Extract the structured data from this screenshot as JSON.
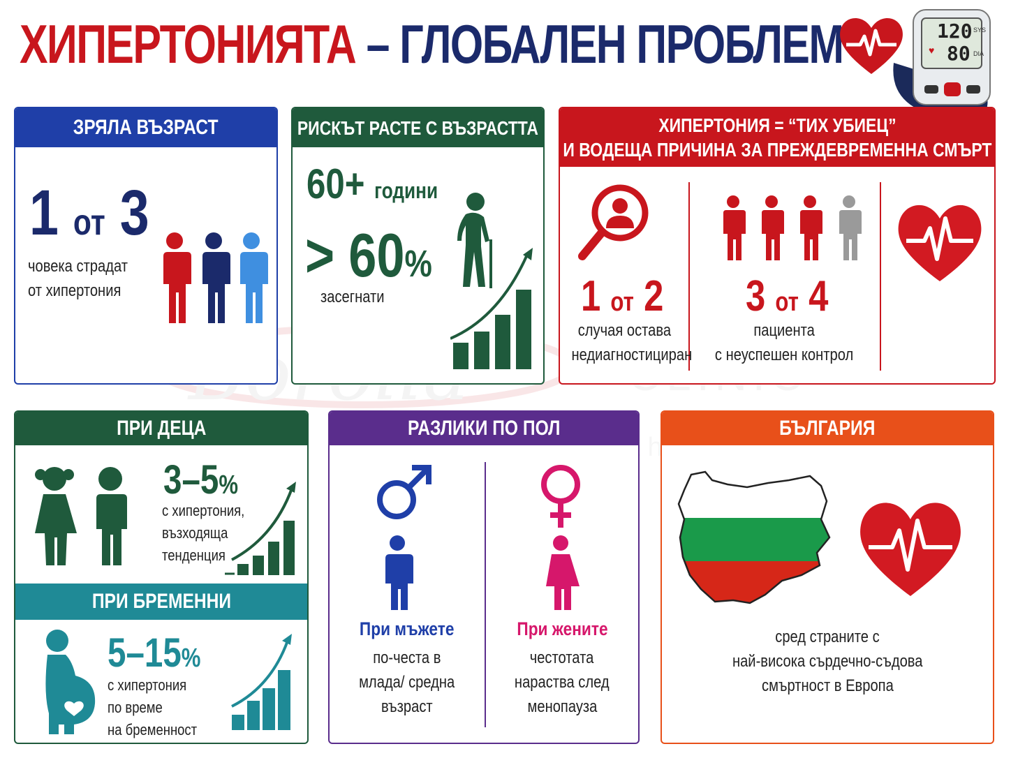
{
  "header": {
    "title_part1": "ХИПЕРТОНИЯТА",
    "title_dash": "–",
    "title_part2": "ГЛОБАЛЕН ПРОБЛЕМ",
    "monitor_sys": "120",
    "monitor_dia": "80",
    "monitor_sys_label": "SYS",
    "monitor_dia_label": "DIA"
  },
  "colors": {
    "red": "#c8161d",
    "navy": "#1b2a6b",
    "blue": "#1f3fa8",
    "green": "#1f5a3c",
    "teal": "#1f8a96",
    "purple": "#5a2d8c",
    "orange": "#e8501a",
    "pink": "#d6176b"
  },
  "adult": {
    "heading": "ЗРЯЛА ВЪЗРАСТ",
    "stat_a": "1",
    "stat_of": "от",
    "stat_b": "3",
    "line1": "човека страдат",
    "line2": "от хипертония"
  },
  "age_risk": {
    "heading": "РИСКЪТ РАСТЕ С ВЪЗРАСТТА",
    "age": "60+",
    "age_unit": "години",
    "percent": "> 60",
    "percent_sign": "%",
    "caption": "засегнати"
  },
  "silent_killer": {
    "heading_line1": "ХИПЕРТОНИЯ = “ТИХ УБИЕЦ”",
    "heading_line2": "И ВОДЕЩА ПРИЧИНА ЗА ПРЕЖДЕВРЕМЕННА СМЪРТ",
    "stat1_a": "1",
    "stat1_of": "от",
    "stat1_b": "2",
    "stat1_line1": "случая остава",
    "stat1_line2": "недиагностициран",
    "stat2_a": "3",
    "stat2_of": "от",
    "stat2_b": "4",
    "stat2_line1": "пациента",
    "stat2_line2": "с неуспешен контрол"
  },
  "children": {
    "heading": "ПРИ ДЕЦА",
    "stat": "3–5",
    "stat_sign": "%",
    "line1": "с хипертония,",
    "line2": "възходяща",
    "line3": "тенденция"
  },
  "pregnant": {
    "heading": "ПРИ БРЕМЕННИ",
    "stat": "5–15",
    "stat_sign": "%",
    "line1": "с хипертония",
    "line2": "по време",
    "line3": "на бременност"
  },
  "gender": {
    "heading": "РАЗЛИКИ ПО ПОЛ",
    "men_title": "При мъжете",
    "men_line1": "по-честа в",
    "men_line2": "млада/ средна",
    "men_line3": "възраст",
    "women_title": "При жените",
    "women_line1": "честотата",
    "women_line2": "нараства след",
    "women_line3": "менопауза"
  },
  "bulgaria": {
    "heading": "БЪЛГАРИЯ",
    "line1": "сред страните с",
    "line2": "най-висока сърдечно-съдова",
    "line3": "смъртност в Европа"
  },
  "watermark": {
    "brand": "Borolla",
    "word": "CLINIC",
    "tagline": "Building a healthier world"
  }
}
